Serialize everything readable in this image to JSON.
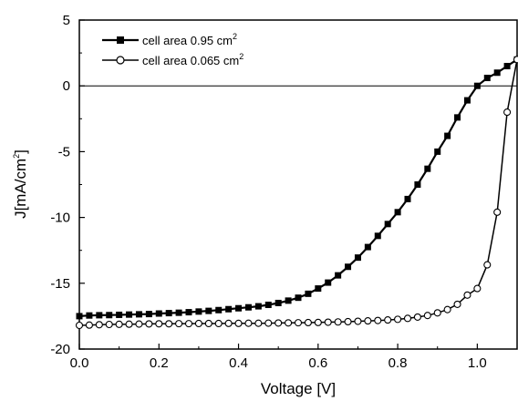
{
  "chart_data": {
    "type": "line",
    "title": "",
    "xlabel": "Voltage [V]",
    "ylabel": "J[mA/cm",
    "ylabel_sup": "2",
    "ylabel_suffix": "]",
    "xlim": [
      0.0,
      1.1
    ],
    "ylim": [
      -20,
      5
    ],
    "x_ticks": [
      0.0,
      0.2,
      0.4,
      0.6,
      0.8,
      1.0
    ],
    "x_tick_labels": [
      "0.0",
      "0.2",
      "0.4",
      "0.6",
      "0.8",
      "1.0"
    ],
    "y_ticks": [
      5,
      0,
      -5,
      -10,
      -15,
      -20
    ],
    "y_tick_labels": [
      "5",
      "0",
      "-5",
      "-10",
      "-15",
      "-20"
    ],
    "zero_line": true,
    "grid": false,
    "legend_position": "top-left",
    "series": [
      {
        "name": "cell area 0.95 cm",
        "name_sup": "2",
        "marker": "filled-square",
        "color": "#000000",
        "x": [
          0.0,
          0.025,
          0.05,
          0.075,
          0.1,
          0.125,
          0.15,
          0.175,
          0.2,
          0.225,
          0.25,
          0.275,
          0.3,
          0.325,
          0.35,
          0.375,
          0.4,
          0.425,
          0.45,
          0.475,
          0.5,
          0.525,
          0.55,
          0.575,
          0.6,
          0.625,
          0.65,
          0.675,
          0.7,
          0.725,
          0.75,
          0.775,
          0.8,
          0.825,
          0.85,
          0.875,
          0.9,
          0.925,
          0.95,
          0.975,
          1.0,
          1.025,
          1.05,
          1.075,
          1.1
        ],
        "y": [
          -17.5,
          -17.45,
          -17.43,
          -17.42,
          -17.4,
          -17.38,
          -17.36,
          -17.34,
          -17.3,
          -17.27,
          -17.24,
          -17.2,
          -17.15,
          -17.1,
          -17.04,
          -16.97,
          -16.9,
          -16.83,
          -16.75,
          -16.64,
          -16.5,
          -16.32,
          -16.1,
          -15.8,
          -15.4,
          -14.95,
          -14.4,
          -13.75,
          -13.05,
          -12.25,
          -11.4,
          -10.5,
          -9.6,
          -8.6,
          -7.5,
          -6.3,
          -5.0,
          -3.8,
          -2.4,
          -1.1,
          0.0,
          0.6,
          1.0,
          1.5,
          2.0
        ]
      },
      {
        "name": "cell area 0.065 cm",
        "name_sup": "2",
        "marker": "open-circle",
        "color": "#000000",
        "x": [
          0.0,
          0.025,
          0.05,
          0.075,
          0.1,
          0.125,
          0.15,
          0.175,
          0.2,
          0.225,
          0.25,
          0.275,
          0.3,
          0.325,
          0.35,
          0.375,
          0.4,
          0.425,
          0.45,
          0.475,
          0.5,
          0.525,
          0.55,
          0.575,
          0.6,
          0.625,
          0.65,
          0.675,
          0.7,
          0.725,
          0.75,
          0.775,
          0.8,
          0.825,
          0.85,
          0.875,
          0.9,
          0.925,
          0.95,
          0.975,
          1.0,
          1.025,
          1.05,
          1.075,
          1.1
        ],
        "y": [
          -18.2,
          -18.18,
          -18.15,
          -18.13,
          -18.12,
          -18.11,
          -18.1,
          -18.09,
          -18.08,
          -18.08,
          -18.07,
          -18.07,
          -18.06,
          -18.06,
          -18.06,
          -18.05,
          -18.05,
          -18.04,
          -18.04,
          -18.03,
          -18.02,
          -18.01,
          -18.0,
          -17.99,
          -17.98,
          -17.96,
          -17.94,
          -17.92,
          -17.89,
          -17.86,
          -17.83,
          -17.79,
          -17.74,
          -17.67,
          -17.57,
          -17.45,
          -17.25,
          -17.0,
          -16.6,
          -15.9,
          -15.4,
          -13.6,
          -9.6,
          -2.0,
          2.0
        ]
      }
    ]
  }
}
